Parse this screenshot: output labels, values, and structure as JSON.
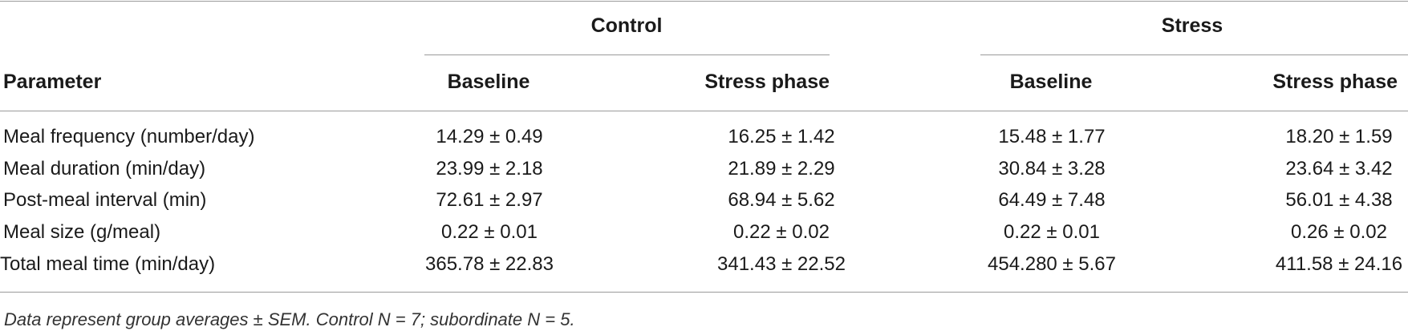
{
  "table": {
    "group_headers": [
      "Control",
      "Stress"
    ],
    "column_headers": [
      "Parameter",
      "Baseline",
      "Stress phase",
      "Baseline",
      "Stress phase"
    ],
    "rows": [
      {
        "parameter": "Meal frequency (number/day)",
        "values": [
          "14.29 ± 0.49",
          "16.25 ± 1.42",
          "15.48 ± 1.77",
          "18.20 ± 1.59"
        ]
      },
      {
        "parameter": "Meal duration (min/day)",
        "values": [
          "23.99 ± 2.18",
          "21.89 ± 2.29",
          "30.84 ± 3.28",
          "23.64 ± 3.42"
        ]
      },
      {
        "parameter": "Post-meal interval (min)",
        "values": [
          "72.61 ± 2.97",
          "68.94 ± 5.62",
          "64.49 ± 7.48",
          "56.01 ± 4.38"
        ]
      },
      {
        "parameter": "Meal size (g/meal)",
        "values": [
          "0.22 ± 0.01",
          "0.22 ± 0.02",
          "0.22 ± 0.01",
          "0.26 ± 0.02"
        ]
      },
      {
        "parameter": "Total meal time (min/day)",
        "values": [
          "365.78 ± 22.83",
          "341.43 ± 22.52",
          "454.280 ± 5.67",
          "411.58 ± 24.16"
        ]
      }
    ],
    "footnote": "Data represent group averages ± SEM. Control N = 7; subordinate N = 5."
  }
}
